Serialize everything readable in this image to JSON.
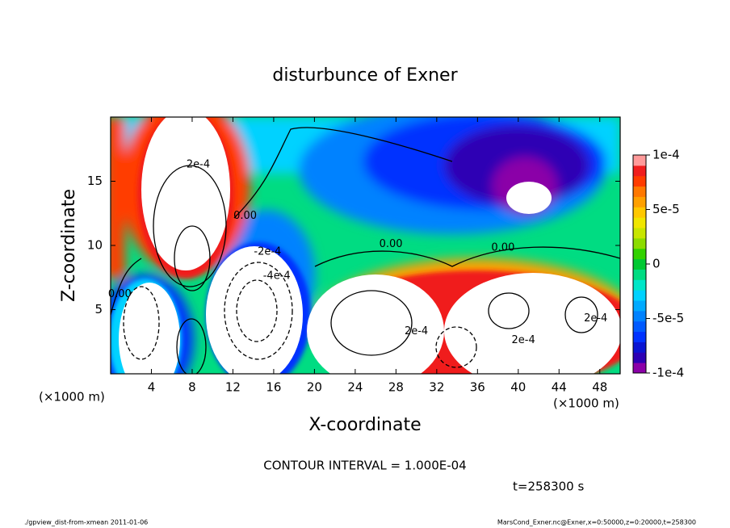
{
  "chart_data": {
    "type": "contour",
    "title": "disturbunce of Exner",
    "x_label": "X-coordinate",
    "y_label": "Z-coordinate",
    "x_unit": "(×1000 m)",
    "y_unit": "(×1000 m)",
    "xlim": [
      0,
      50
    ],
    "ylim": [
      0,
      20
    ],
    "xticks": [
      4,
      8,
      12,
      16,
      20,
      24,
      28,
      32,
      36,
      40,
      44,
      48
    ],
    "yticks": [
      5,
      10,
      15
    ],
    "colorbar": {
      "lim": [
        -0.0001,
        0.0001
      ],
      "ticks": [
        {
          "value": 0.0001,
          "label": "1e-4"
        },
        {
          "value": 5e-05,
          "label": "5e-5"
        },
        0,
        {
          "value": -5e-05,
          "label": "-5e-5"
        },
        {
          "value": -0.0001,
          "label": "-1e-4"
        }
      ],
      "colors": [
        "#8b00a8",
        "#2d00b4",
        "#0a14d2",
        "#0032ff",
        "#005aff",
        "#0082ff",
        "#00aaff",
        "#00d2ff",
        "#00e6c8",
        "#00dc82",
        "#00c832",
        "#32d200",
        "#8cdc00",
        "#c8e600",
        "#f0e600",
        "#ffc800",
        "#ffa000",
        "#ff7800",
        "#ff3c00",
        "#f01e1e",
        "#ff9a9a"
      ]
    },
    "contour_labels": [
      {
        "text": "2e-4",
        "x": 8.6,
        "z": 16.3
      },
      {
        "text": "0.00",
        "x": 13.2,
        "z": 12.3
      },
      {
        "text": "-2e-4",
        "x": 15.4,
        "z": 9.5
      },
      {
        "text": "-4e-4",
        "x": 16.3,
        "z": 7.6
      },
      {
        "text": "0.00",
        "x": 27.5,
        "z": 10.1
      },
      {
        "text": "0.00",
        "x": 38.5,
        "z": 9.8
      },
      {
        "text": "0.00",
        "x": 0.9,
        "z": 6.2
      },
      {
        "text": "2e-4",
        "x": 30.0,
        "z": 3.3
      },
      {
        "text": "2e-4",
        "x": 40.5,
        "z": 2.6
      },
      {
        "text": "2e-4",
        "x": 47.6,
        "z": 4.3
      }
    ],
    "annotations": [
      "CONTOUR INTERVAL = 1.000E-04",
      "t=258300 s"
    ],
    "footer_left": "./gpview_dist-from-xmean  2011-01-06",
    "footer_right": "MarsCond_Exner.nc@Exner,x=0:50000,z=0:20000,t=258300"
  }
}
